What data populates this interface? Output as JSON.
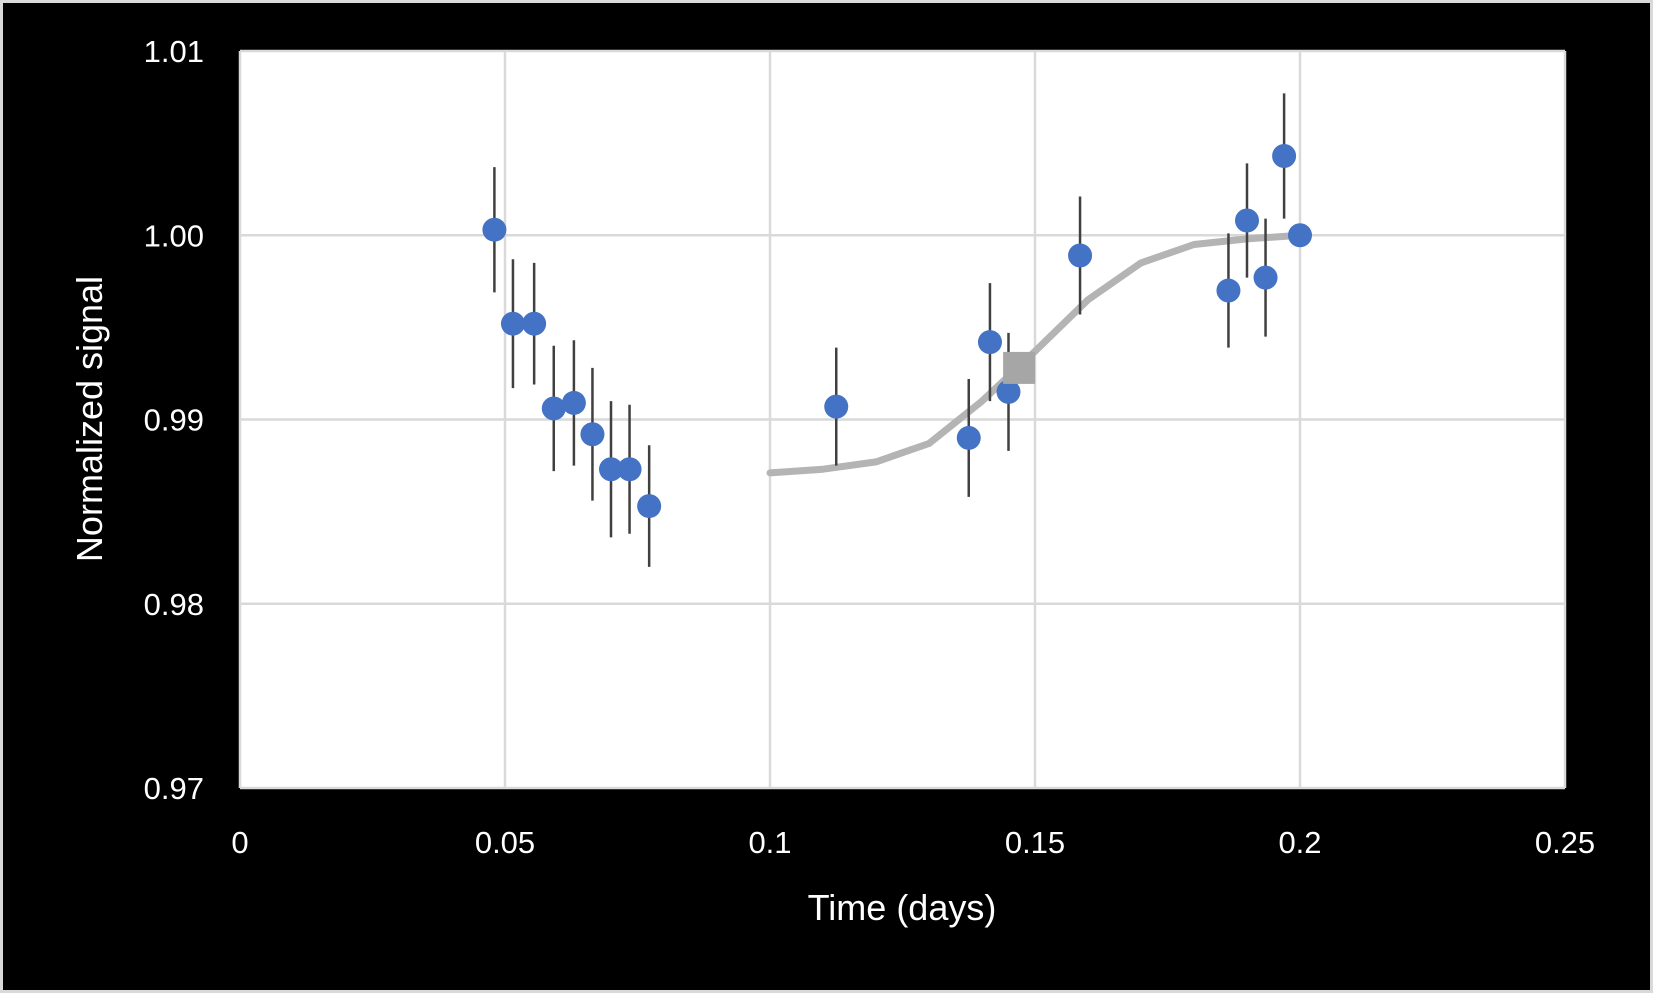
{
  "chart_data": {
    "type": "scatter",
    "xlabel": "Time (days)",
    "ylabel": "Normalized signal",
    "xlim": [
      0,
      0.25
    ],
    "ylim": [
      0.97,
      1.01
    ],
    "x_ticks": [
      "0",
      "0.05",
      "0.1",
      "0.15",
      "0.2",
      "0.25"
    ],
    "y_ticks": [
      "0.97",
      "0.98",
      "0.99",
      "1.00",
      "1.01"
    ],
    "grid": true,
    "legend": "none",
    "colors": {
      "observed": "#4472c4",
      "model": "#b4b4b4",
      "error_bars": "#404040",
      "marker": "#a6a6a6",
      "background": "#000000",
      "plot_area": "#ffffff",
      "grid": "#d9d9d9"
    },
    "series": [
      {
        "kind": "points-with-error-bars",
        "x": [
          0.048,
          0.0515,
          0.0555,
          0.0592,
          0.063,
          0.0665,
          0.07,
          0.0735,
          0.0772,
          0.1125,
          0.1375,
          0.1415,
          0.145,
          0.1585,
          0.1865,
          0.19,
          0.1935,
          0.197,
          0.2
        ],
        "y": [
          1.0003,
          0.9952,
          0.9952,
          0.9906,
          0.9909,
          0.9892,
          0.9873,
          0.9873,
          0.9853,
          0.9907,
          0.989,
          0.9942,
          0.9915,
          0.9989,
          0.997,
          1.0008,
          0.9977,
          1.0043,
          1.0
        ],
        "err": [
          0.0034,
          0.0035,
          0.0033,
          0.0034,
          0.0034,
          0.0036,
          0.0037,
          0.0035,
          0.0033,
          0.0032,
          0.0032,
          0.0032,
          0.0032,
          0.0032,
          0.0031,
          0.0031,
          0.0032,
          0.0034,
          0.0
        ]
      },
      {
        "kind": "line",
        "x": [
          0.1,
          0.11,
          0.12,
          0.13,
          0.14,
          0.15,
          0.16,
          0.17,
          0.18,
          0.19,
          0.2
        ],
        "y": [
          0.9871,
          0.9873,
          0.9877,
          0.9887,
          0.991,
          0.9937,
          0.9965,
          0.9985,
          0.9995,
          0.9998,
          1.0
        ]
      },
      {
        "kind": "square-marker",
        "x": [
          0.147
        ],
        "y": [
          0.9928
        ]
      }
    ]
  }
}
